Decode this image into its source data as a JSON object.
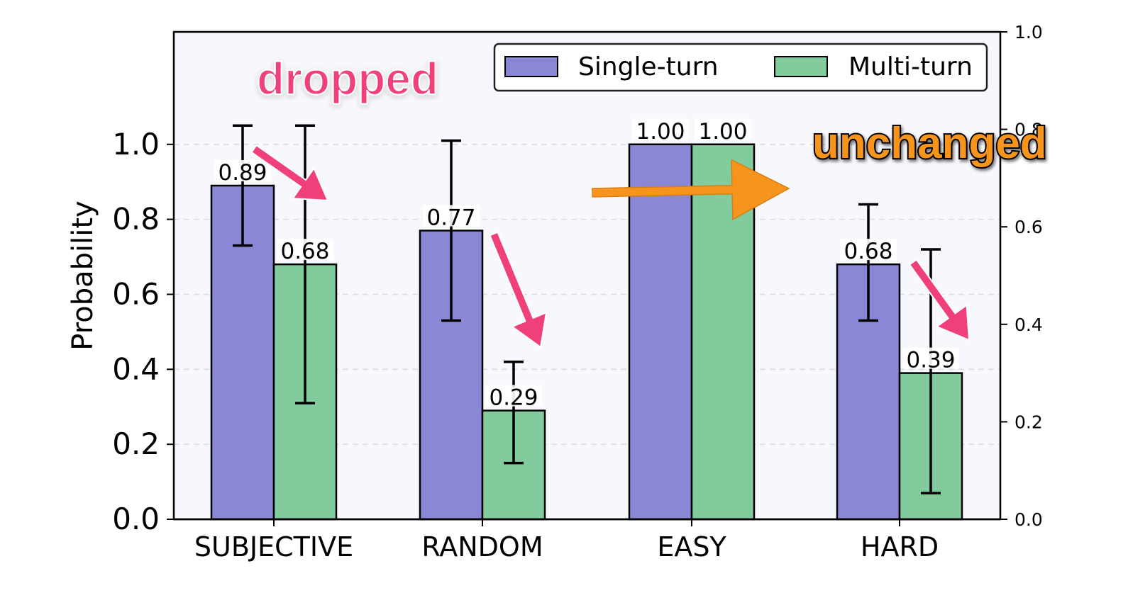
{
  "chart_data": {
    "type": "bar",
    "categories": [
      "SUBJECTIVE",
      "RANDOM",
      "EASY",
      "HARD"
    ],
    "series": [
      {
        "name": "Single-turn",
        "color": "#8a87d6",
        "values": [
          0.89,
          0.77,
          1.0,
          0.68
        ],
        "value_labels": [
          "0.89",
          "0.77",
          "1.00",
          "0.68"
        ],
        "error_low": [
          0.73,
          0.53,
          1.0,
          0.53
        ],
        "error_high": [
          1.05,
          1.01,
          1.0,
          0.84
        ]
      },
      {
        "name": "Multi-turn",
        "color": "#82cb9d",
        "values": [
          0.68,
          0.29,
          1.0,
          0.39
        ],
        "value_labels": [
          "0.68",
          "0.29",
          "1.00",
          "0.39"
        ],
        "error_low": [
          0.31,
          0.15,
          1.0,
          0.07
        ],
        "error_high": [
          1.05,
          0.42,
          1.0,
          0.72
        ]
      }
    ],
    "ylabel": "Probability",
    "xlabel": "",
    "ylim": [
      0,
      1.3
    ],
    "yticks": [
      "0.0",
      "0.2",
      "0.4",
      "0.6",
      "0.8",
      "1.0"
    ],
    "y2lim": [
      0,
      1.0
    ],
    "y2ticks": [
      "0.0",
      "0.2",
      "0.4",
      "0.6",
      "0.8",
      "1.0"
    ],
    "grid": true,
    "legend_position": "top-right",
    "annotations": {
      "dropped": "dropped",
      "unchanged": "unchanged"
    },
    "annotation_colors": {
      "pink": "#f0407a",
      "orange": "#f7941d"
    }
  }
}
